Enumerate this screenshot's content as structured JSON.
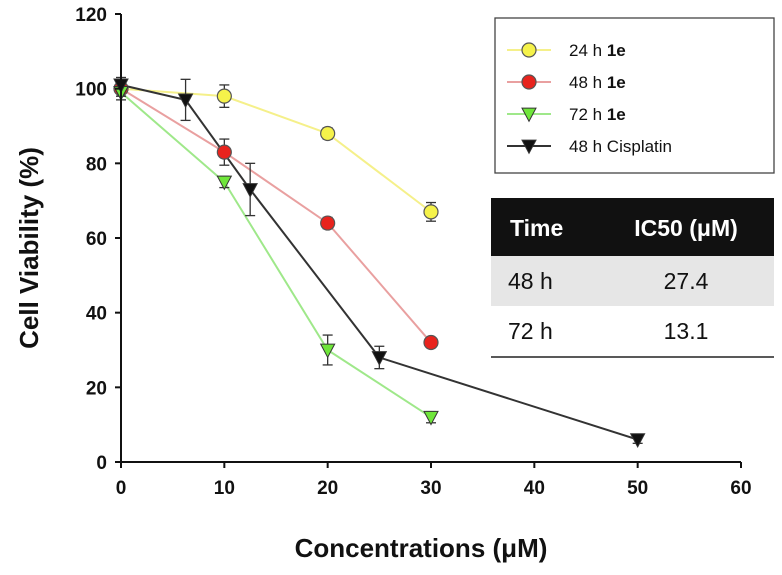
{
  "chart_data": {
    "type": "line",
    "xlabel": "Concentrations (μM)",
    "ylabel": "Cell Viability (%)",
    "xlim": [
      0,
      60
    ],
    "ylim": [
      0,
      120
    ],
    "xticks": [
      0,
      10,
      20,
      30,
      40,
      50,
      60
    ],
    "yticks": [
      0,
      20,
      40,
      60,
      80,
      100,
      120
    ],
    "grid": false,
    "legend_position": "top-right",
    "series": [
      {
        "name": "24 h 1e",
        "name_parts": [
          "24 h ",
          "1e"
        ],
        "marker": "circle",
        "color": "#f5f24a",
        "line_color": "#f5f08a",
        "x": [
          0,
          10,
          20,
          30
        ],
        "y": [
          100,
          98,
          88,
          67
        ],
        "err": [
          2,
          3,
          1.5,
          2.5
        ]
      },
      {
        "name": "48 h 1e",
        "name_parts": [
          "48 h ",
          "1e"
        ],
        "marker": "circle",
        "color": "#e8231d",
        "line_color": "#e9a0a0",
        "x": [
          0,
          10,
          20,
          30
        ],
        "y": [
          100,
          83,
          64,
          32
        ],
        "err": [
          2,
          3.5,
          1.5,
          1
        ]
      },
      {
        "name": "72 h 1e",
        "name_parts": [
          "72 h ",
          "1e"
        ],
        "marker": "triangle-down",
        "color": "#6fe63a",
        "line_color": "#9fe88a",
        "x": [
          0,
          10,
          20,
          30
        ],
        "y": [
          99,
          75,
          30,
          12
        ],
        "err": [
          2,
          1.5,
          4,
          1.5
        ]
      },
      {
        "name": "48 h Cisplatin",
        "name_parts": [
          "48 h Cisplatin",
          ""
        ],
        "marker": "triangle-down",
        "color": "#111111",
        "line_color": "#333333",
        "x": [
          0,
          6.25,
          12.5,
          25,
          50
        ],
        "y": [
          101,
          97,
          73,
          28,
          6
        ],
        "err": [
          2,
          5.5,
          7,
          3,
          1
        ]
      }
    ],
    "table": {
      "headers": [
        "Time",
        "IC50 (μM)"
      ],
      "rows": [
        [
          "48 h",
          "27.4"
        ],
        [
          "72 h",
          "13.1"
        ]
      ],
      "header_bg": "#111111",
      "stripe_bg": "#e6e6e6"
    }
  }
}
